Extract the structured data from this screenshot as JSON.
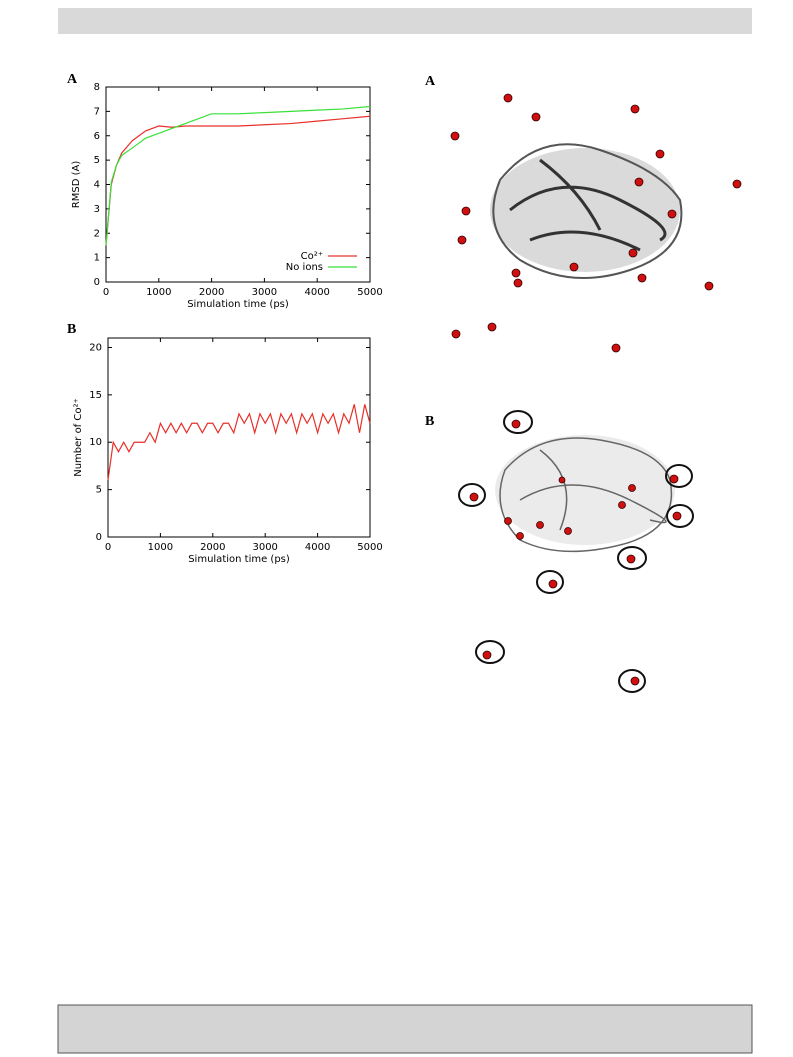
{
  "chart_data": [
    {
      "type": "line",
      "title": "A",
      "x_label": "Simulation time (ps)",
      "y_label": "RMSD (A)",
      "x": [
        0,
        100,
        200,
        300,
        500,
        750,
        1000,
        1250,
        1500,
        2000,
        2500,
        3000,
        3500,
        4000,
        4500,
        5000
      ],
      "series": [
        {
          "name": "Co²⁺",
          "color": "#e8302a",
          "values": [
            1.5,
            4.0,
            4.8,
            5.3,
            5.8,
            6.2,
            6.4,
            6.35,
            6.4,
            6.4,
            6.4,
            6.45,
            6.5,
            6.6,
            6.7,
            6.8
          ]
        },
        {
          "name": "No ions",
          "color": "#38e038",
          "values": [
            1.5,
            4.1,
            4.8,
            5.2,
            5.5,
            5.9,
            6.1,
            6.3,
            6.5,
            6.9,
            6.9,
            6.95,
            7.0,
            7.05,
            7.1,
            7.2
          ]
        }
      ],
      "xlim": [
        0,
        5000
      ],
      "xticks": [
        0,
        1000,
        2000,
        3000,
        4000,
        5000
      ],
      "ylim": [
        0,
        8
      ],
      "yticks": [
        0,
        1,
        2,
        3,
        4,
        5,
        6,
        7,
        8
      ],
      "legend": "lower right"
    },
    {
      "type": "line",
      "title": "B",
      "x_label": "Simulation time (ps)",
      "y_label": "Number of Co²⁺",
      "x": [
        0,
        100,
        200,
        300,
        400,
        500,
        600,
        700,
        800,
        900,
        1000,
        1100,
        1200,
        1300,
        1400,
        1500,
        1600,
        1700,
        1800,
        1900,
        2000,
        2100,
        2200,
        2300,
        2400,
        2500,
        2600,
        2700,
        2800,
        2900,
        3000,
        3100,
        3200,
        3300,
        3400,
        3500,
        3600,
        3700,
        3800,
        3900,
        4000,
        4100,
        4200,
        4300,
        4400,
        4500,
        4600,
        4700,
        4800,
        4900,
        5000
      ],
      "series": [
        {
          "name": null,
          "color": "#e8302a",
          "values": [
            6,
            10,
            9,
            10,
            9,
            10,
            10,
            10,
            11,
            10,
            12,
            11,
            12,
            11,
            12,
            11,
            12,
            12,
            11,
            12,
            12,
            11,
            12,
            12,
            11,
            13,
            12,
            13,
            11,
            13,
            12,
            13,
            11,
            13,
            12,
            13,
            11,
            13,
            12,
            13,
            11,
            13,
            12,
            13,
            11,
            13,
            12,
            14,
            11,
            14,
            12
          ]
        }
      ],
      "xlim": [
        0,
        5000
      ],
      "xticks": [
        0,
        1000,
        2000,
        3000,
        4000,
        5000
      ],
      "ylim": [
        0,
        21
      ],
      "yticks": [
        0,
        5,
        10,
        15,
        20
      ]
    }
  ],
  "images": [
    {
      "label": "A"
    },
    {
      "label": "B"
    }
  ]
}
